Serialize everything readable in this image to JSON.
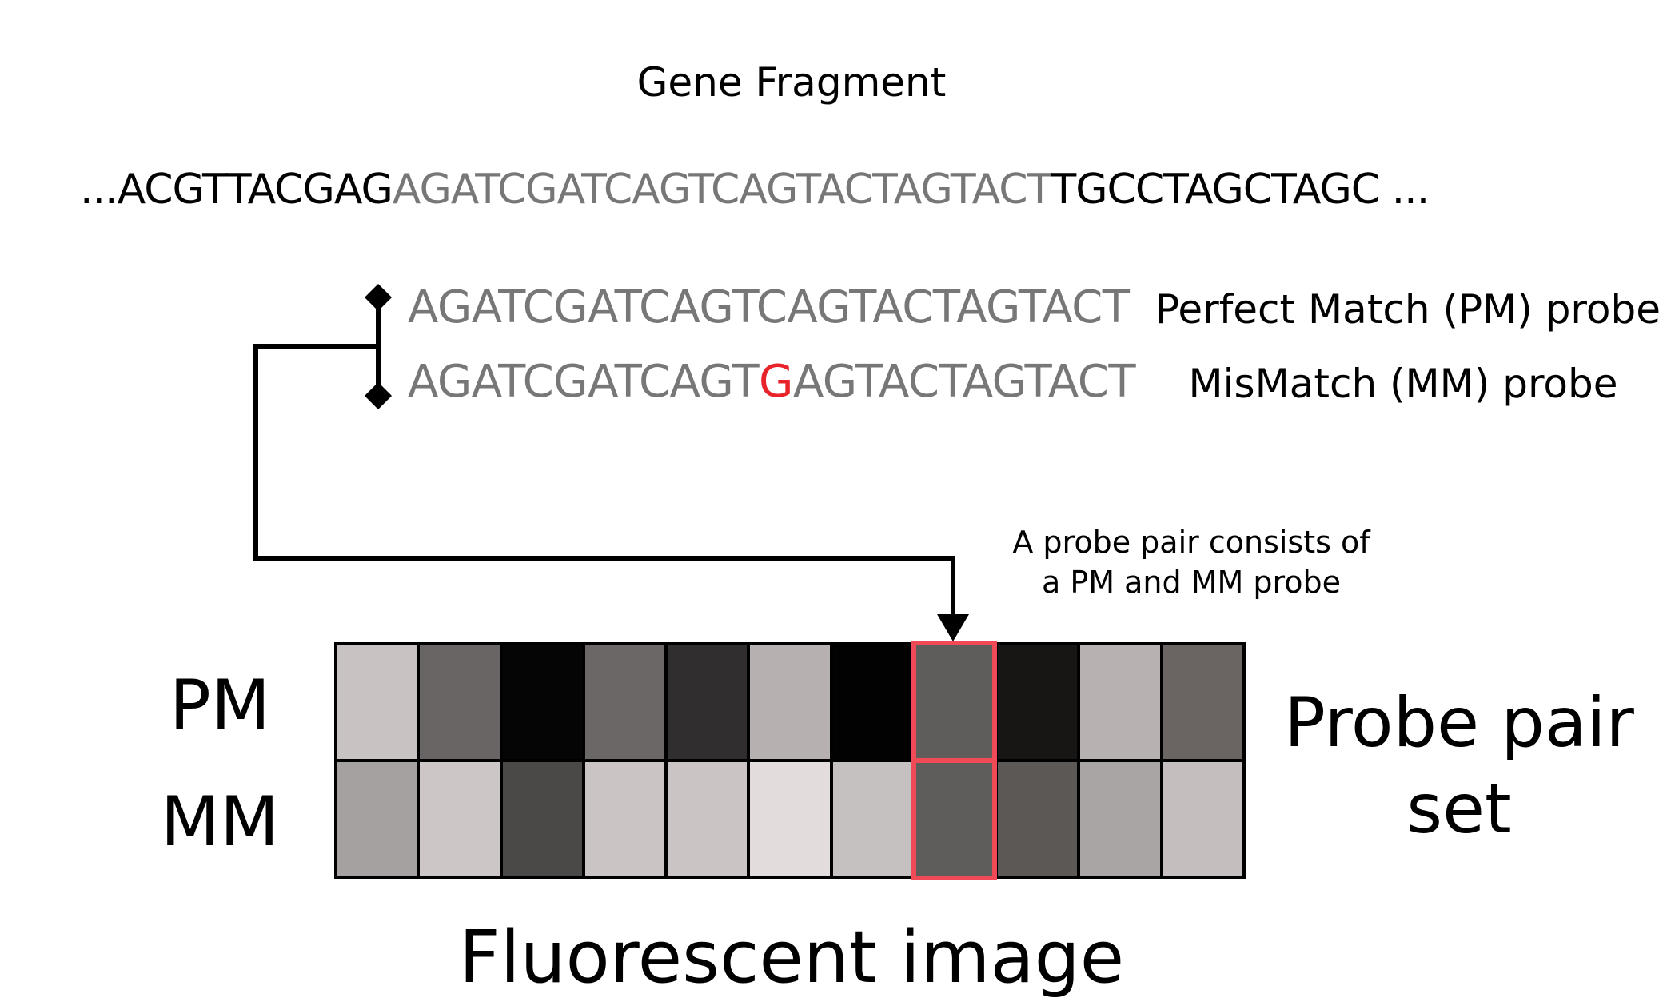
{
  "title": "Gene Fragment",
  "sequence": {
    "prefix": "...ACGTTACGAG",
    "probe_region": "AGATCGATCAGTCAGTACTAGTACT",
    "suffix": "TGCCTAGCTAGC ..."
  },
  "pm_probe": {
    "sequence": "AGATCGATCAGTCAGTACTAGTACT",
    "label": "Perfect Match (PM) probe"
  },
  "mm_probe": {
    "sequence_before": "AGATCGATCAGT",
    "mismatch_base": "G",
    "sequence_after": "AGTACTAGTACT",
    "label": "MisMatch (MM) probe"
  },
  "note": {
    "line1": "A probe pair consists of",
    "line2": "a PM and MM probe"
  },
  "row_labels": {
    "pm": "PM",
    "mm": "MM"
  },
  "probeset_label": {
    "line1": "Probe pair",
    "line2": "set"
  },
  "caption": "Fluorescent image",
  "colors": {
    "mismatch": "#e8242a",
    "highlight": "#ef4a55",
    "probe_text": "#777777"
  },
  "fluorescent_image": {
    "highlighted_pair_index": 7,
    "pm_intensities": [
      "#c8c2c2",
      "#6a6565",
      "#050505",
      "#6b6767",
      "#302e2e",
      "#b6b0b0",
      "#020202",
      "#5f5c5c",
      "#181614",
      "#b7b1b1",
      "#6a6563"
    ],
    "mm_intensities": [
      "#a6a1a1",
      "#cdc6c6",
      "#4b4848",
      "#cac4c4",
      "#cac4c4",
      "#e3dcdc",
      "#c6c1c1",
      "#5f5c5c",
      "#5c5856",
      "#aaa5a5",
      "#c4bebe"
    ]
  }
}
